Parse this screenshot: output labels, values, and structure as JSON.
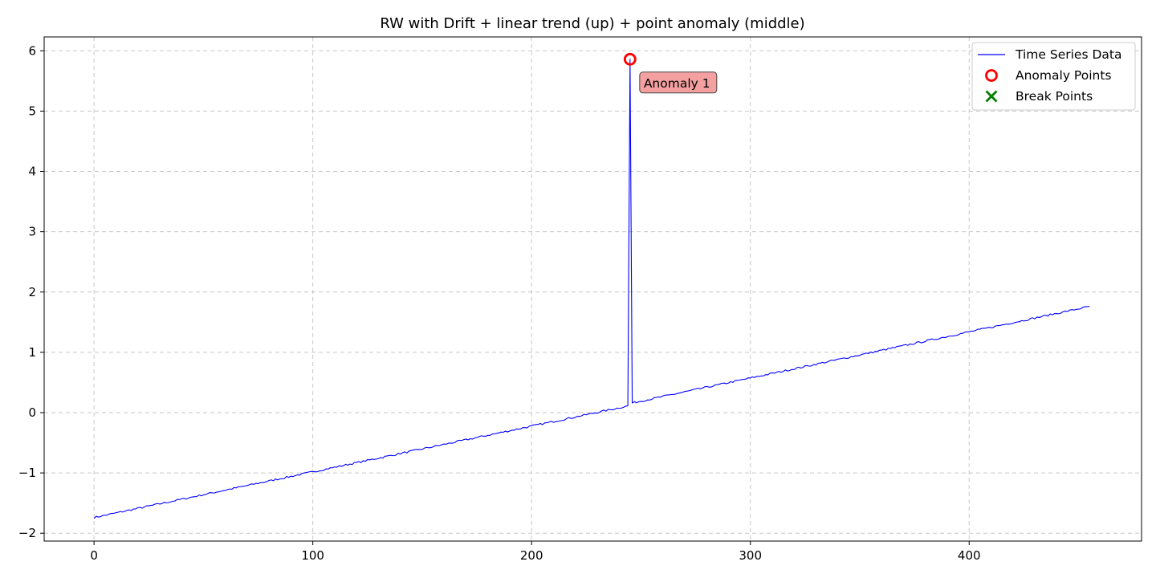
{
  "chart_data": {
    "type": "line",
    "title": "RW with Drift + linear trend (up) + point anomaly (middle)",
    "xlabel": "",
    "ylabel": "",
    "xlim": [
      -22.8,
      478.8
    ],
    "ylim": [
      -2.13,
      6.23
    ],
    "xticks": [
      0,
      100,
      200,
      300,
      400
    ],
    "xtick_labels": [
      "0",
      "100",
      "200",
      "300",
      "400"
    ],
    "yticks": [
      -2,
      -1,
      0,
      1,
      2,
      3,
      4,
      5,
      6
    ],
    "ytick_labels": [
      "−2",
      "−1",
      "0",
      "1",
      "2",
      "3",
      "4",
      "5",
      "6"
    ],
    "grid": true,
    "legend_position": "top-right",
    "legend": [
      {
        "label": "Time Series Data",
        "kind": "line",
        "color": "#0000ff"
      },
      {
        "label": "Anomaly Points",
        "kind": "circle",
        "color": "#ff0000"
      },
      {
        "label": "Break Points",
        "kind": "x",
        "color": "#008000"
      }
    ],
    "series": [
      {
        "name": "Time Series Data",
        "color": "#0000ff",
        "x_start": 0,
        "x_end": 455,
        "y_start": -1.74,
        "y_end": 1.76,
        "pre_anomaly_end": {
          "x": 244,
          "y": 0.11
        },
        "post_anomaly_start": {
          "x": 246,
          "y": 0.16
        },
        "noise_amplitude": 0.015
      }
    ],
    "anomalies": [
      {
        "x": 245,
        "y": 5.86,
        "label": "Anomaly 1",
        "color": "#ff0000"
      }
    ],
    "break_points": []
  },
  "colors": {
    "line": "#0000ff",
    "anomaly": "#ff0000",
    "break": "#008000",
    "annotation_fill": "#f4a0a0",
    "grid": "#b0b0b0"
  }
}
